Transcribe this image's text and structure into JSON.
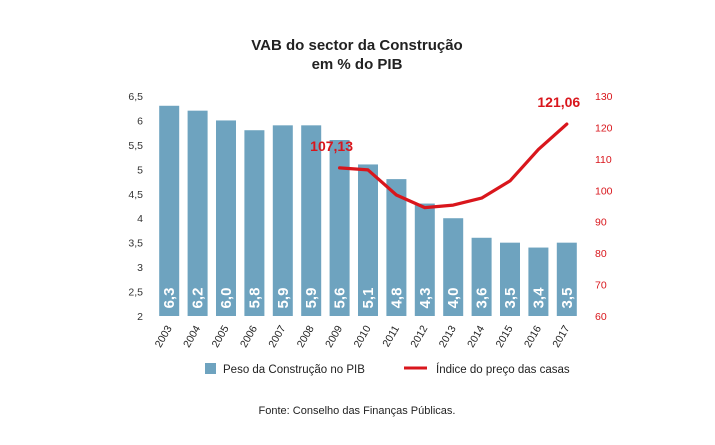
{
  "chart_data": {
    "type": "bar",
    "title": "VAB do sector da Construção",
    "subtitle": "em % do PIB",
    "source": "Fonte: Conselho das Finanças Públicas.",
    "categories": [
      "2003",
      "2004",
      "2005",
      "2006",
      "2007",
      "2008",
      "2009",
      "2010",
      "2011",
      "2012",
      "2013",
      "2014",
      "2015",
      "2016",
      "2017"
    ],
    "series": [
      {
        "name": "Peso da Construção no PIB",
        "type": "bar",
        "axis": "left",
        "color": "#6ea3bf",
        "values": [
          6.3,
          6.2,
          6.0,
          5.8,
          5.9,
          5.9,
          5.6,
          5.1,
          4.8,
          4.3,
          4.0,
          3.6,
          3.5,
          3.4,
          3.5
        ],
        "labels": [
          "6,3",
          "6,2",
          "6,0",
          "5,8",
          "5,9",
          "5,9",
          "5,6",
          "5,1",
          "4,8",
          "4,3",
          "4,0",
          "3,6",
          "3,5",
          "3,4",
          "3,5"
        ]
      },
      {
        "name": "Índice do preço das casas",
        "type": "line",
        "axis": "right",
        "color": "#d9161c",
        "x": [
          "2009",
          "2010",
          "2011",
          "2012",
          "2013",
          "2014",
          "2015",
          "2016",
          "2017"
        ],
        "values": [
          107.13,
          106.5,
          98.5,
          94.5,
          95.3,
          97.5,
          103,
          113,
          121.06
        ]
      }
    ],
    "left_axis": {
      "ylim": [
        2,
        6.5
      ],
      "ticks": [
        2,
        2.5,
        3,
        3.5,
        4,
        4.5,
        5,
        5.5,
        6,
        6.5
      ],
      "tick_labels": [
        "2",
        "2,5",
        "3",
        "3,5",
        "4",
        "4,5",
        "5",
        "5,5",
        "6",
        "6,5"
      ]
    },
    "right_axis": {
      "ylim": [
        60,
        130
      ],
      "ticks": [
        60,
        70,
        80,
        90,
        100,
        110,
        120,
        130
      ],
      "tick_labels": [
        "60",
        "70",
        "80",
        "90",
        "100",
        "110",
        "120",
        "130"
      ]
    },
    "annotations": [
      {
        "x": "2009",
        "value": 107.13,
        "text": "107,13"
      },
      {
        "x": "2017",
        "value": 121.06,
        "text": "121,06"
      }
    ],
    "legend": {
      "position": "bottom",
      "bar_label": "Peso da Construção no PIB",
      "line_label": "Índice do preço das casas"
    },
    "colors": {
      "bar": "#6ea3bf",
      "line": "#d9161c",
      "axis_right": "#d9161c"
    }
  }
}
